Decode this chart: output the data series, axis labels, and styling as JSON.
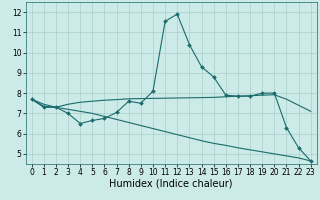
{
  "xlabel": "Humidex (Indice chaleur)",
  "background_color": "#cceae8",
  "grid_color": "#aacfcc",
  "line_color": "#1a6b6b",
  "x_values": [
    0,
    1,
    2,
    3,
    4,
    5,
    6,
    7,
    8,
    9,
    10,
    11,
    12,
    13,
    14,
    15,
    16,
    17,
    18,
    19,
    20,
    21,
    22,
    23
  ],
  "line1": [
    7.7,
    7.3,
    7.3,
    7.0,
    6.5,
    6.65,
    6.75,
    7.05,
    7.6,
    7.5,
    8.1,
    11.55,
    11.9,
    10.4,
    9.3,
    8.8,
    7.9,
    7.85,
    7.85,
    8.0,
    8.0,
    6.3,
    5.3,
    4.65
  ],
  "line2": [
    7.7,
    7.35,
    7.3,
    7.45,
    7.55,
    7.6,
    7.65,
    7.68,
    7.72,
    7.73,
    7.74,
    7.75,
    7.76,
    7.77,
    7.78,
    7.79,
    7.82,
    7.85,
    7.87,
    7.9,
    7.92,
    7.7,
    7.4,
    7.1
  ],
  "line3": [
    7.7,
    7.45,
    7.3,
    7.2,
    7.1,
    7.0,
    6.85,
    6.7,
    6.55,
    6.4,
    6.25,
    6.1,
    5.95,
    5.8,
    5.65,
    5.52,
    5.42,
    5.3,
    5.2,
    5.1,
    5.0,
    4.9,
    4.8,
    4.65
  ],
  "ylim": [
    4.5,
    12.5
  ],
  "xlim": [
    -0.5,
    23.5
  ],
  "yticks": [
    5,
    6,
    7,
    8,
    9,
    10,
    11,
    12
  ],
  "xticks": [
    0,
    1,
    2,
    3,
    4,
    5,
    6,
    7,
    8,
    9,
    10,
    11,
    12,
    13,
    14,
    15,
    16,
    17,
    18,
    19,
    20,
    21,
    22,
    23
  ],
  "tick_fontsize": 5.5,
  "label_fontsize": 7,
  "line_width": 0.8,
  "marker_size": 2.0
}
